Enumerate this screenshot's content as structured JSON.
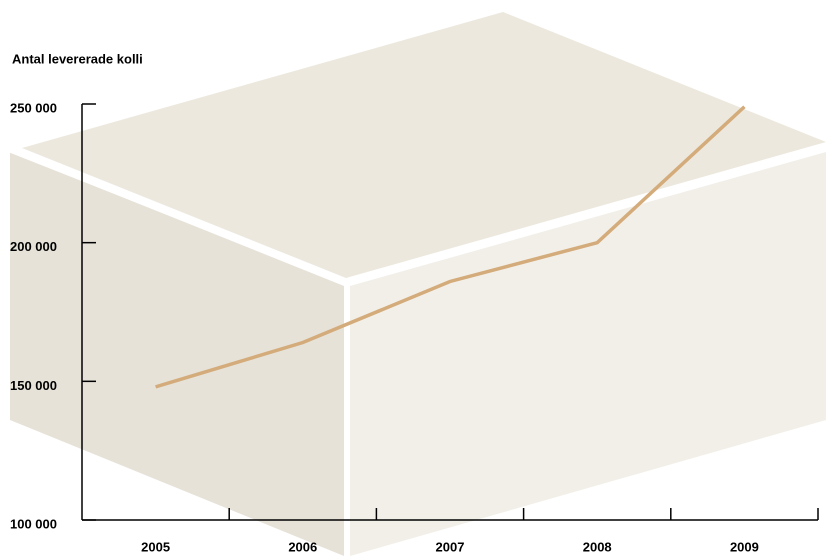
{
  "chart_data": {
    "type": "line",
    "y_label": "Antal levererade kolli",
    "categories": [
      "2005",
      "2006",
      "2007",
      "2008",
      "2009"
    ],
    "series": [
      {
        "color": "#d4ab7a",
        "values": [
          148000,
          164000,
          186000,
          200000,
          249000
        ]
      }
    ],
    "ylim": [
      100000,
      250000
    ],
    "yticks": [
      {
        "value": 100000,
        "label": "100 000"
      },
      {
        "value": 150000,
        "label": "150 000"
      },
      {
        "value": 200000,
        "label": "200 000"
      },
      {
        "value": 250000,
        "label": "250 000"
      }
    ]
  }
}
